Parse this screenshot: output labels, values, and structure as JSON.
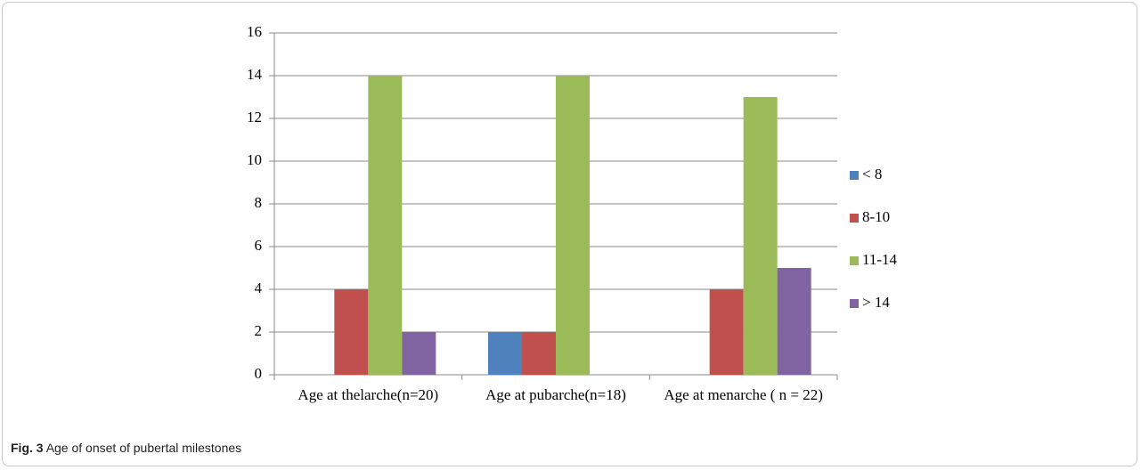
{
  "chart_data": {
    "type": "bar",
    "caption_label": "Fig. 3",
    "caption": "Age of onset of pubertal milestones",
    "categories": [
      "Age at thelarche(n=20)",
      "Age at pubarche(n=18)",
      "Age at menarche ( n = 22)"
    ],
    "series": [
      {
        "name": "< 8",
        "color": "#4f81bd",
        "values": [
          0,
          2,
          0
        ]
      },
      {
        "name": "8-10",
        "color": "#c0504d",
        "values": [
          4,
          2,
          4
        ]
      },
      {
        "name": "11-14",
        "color": "#9bbb59",
        "values": [
          14,
          14,
          13
        ]
      },
      {
        "name": "> 14",
        "color": "#8064a2",
        "values": [
          2,
          0,
          5
        ]
      }
    ],
    "ylim": [
      0,
      16
    ],
    "yticks": [
      0,
      2,
      4,
      6,
      8,
      10,
      12,
      14,
      16
    ],
    "grid": true,
    "legend": "right"
  }
}
